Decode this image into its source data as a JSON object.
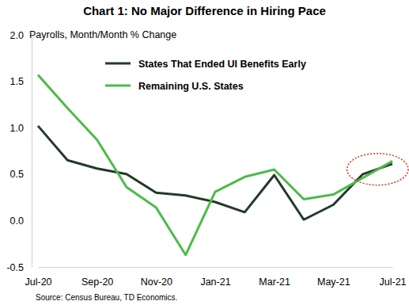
{
  "chart_data": {
    "type": "line",
    "title": "Chart 1: No Major Difference in Hiring Pace",
    "y_label": "Payrolls, Month/Month % Change",
    "source": "Source: Census Bureau, TD Economics.",
    "categories": [
      "Jul-20",
      null,
      "Sep-20",
      null,
      "Nov-20",
      null,
      "Jan-21",
      null,
      "Mar-21",
      null,
      "May-21",
      null,
      "Jul-21"
    ],
    "series": [
      {
        "name": "States That Ended UI Benefits Early",
        "color": "#233a29",
        "values": [
          1.02,
          0.65,
          0.56,
          0.5,
          0.3,
          0.27,
          0.2,
          0.09,
          0.49,
          0.01,
          0.17,
          0.5,
          0.61
        ]
      },
      {
        "name": "Remaining U.S. States",
        "color": "#4cbb47",
        "values": [
          1.57,
          1.21,
          0.87,
          0.36,
          0.14,
          -0.37,
          0.31,
          0.47,
          0.55,
          0.23,
          0.28,
          0.46,
          0.64
        ]
      }
    ],
    "ylim": [
      -0.5,
      2.0
    ],
    "yticks": [
      {
        "value": -0.5,
        "label": "-0.5"
      },
      {
        "value": 0,
        "label": "0.0"
      },
      {
        "value": 0.5,
        "label": "0.5"
      },
      {
        "value": 1.0,
        "label": "1.0"
      },
      {
        "value": 1.5,
        "label": "1.5"
      },
      {
        "value": 2.0,
        "label": "2.0"
      }
    ],
    "grid": false,
    "legend": "upper center"
  }
}
